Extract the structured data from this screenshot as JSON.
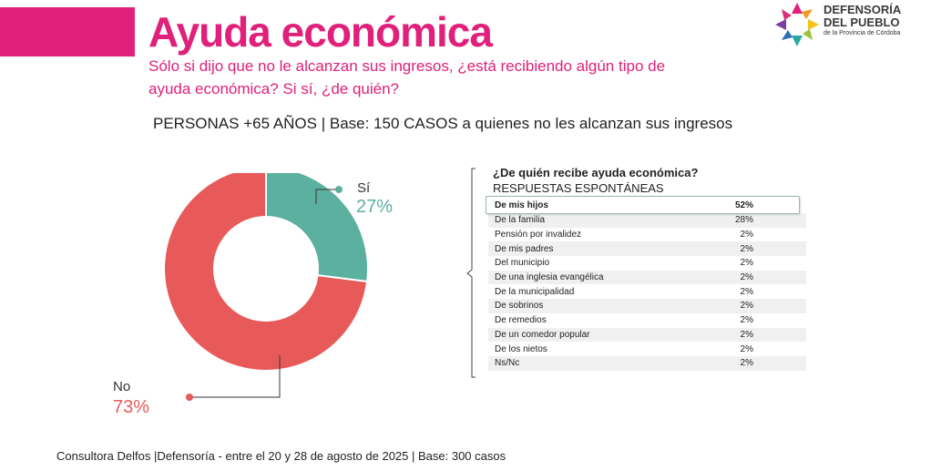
{
  "header": {
    "title": "Ayuda económica",
    "question": "Sólo si dijo que no le alcanzan sus ingresos, ¿está recibiendo algún tipo de ayuda económica? Si sí, ¿de quién?",
    "base": "PERSONAS +65 AÑOS | Base: 150 CASOS a quienes no les alcanzan sus ingresos"
  },
  "logo": {
    "line1": "DEFENSORÍA",
    "line2": "DEL PUEBLO",
    "line3": "de la Provincia de Córdoba"
  },
  "colors": {
    "brand": "#e0207a",
    "si": "#5bb0a0",
    "no": "#e85a5a"
  },
  "chart_data": [
    {
      "type": "pie",
      "categories": [
        "Sí",
        "No"
      ],
      "values": [
        27,
        73
      ],
      "value_labels": [
        "27%",
        "73%"
      ],
      "colors": [
        "#5bb0a0",
        "#e85a5a"
      ]
    },
    {
      "type": "table",
      "title": "¿De quién recibe ayuda económica?",
      "subtitle": "RESPUESTAS ESPONTÁNEAS",
      "rows": [
        {
          "label": "De mis hijos",
          "value": "52%"
        },
        {
          "label": "De la familia",
          "value": "28%"
        },
        {
          "label": "Pensión por invalidez",
          "value": "2%"
        },
        {
          "label": "De mis padres",
          "value": "2%"
        },
        {
          "label": "Del municipio",
          "value": "2%"
        },
        {
          "label": "De una inglesia evangélica",
          "value": "2%"
        },
        {
          "label": "De la municipalidad",
          "value": "2%"
        },
        {
          "label": "De sobrinos",
          "value": "2%"
        },
        {
          "label": "De remedios",
          "value": "2%"
        },
        {
          "label": "De un comedor popular",
          "value": "2%"
        },
        {
          "label": "De los nietos",
          "value": "2%"
        },
        {
          "label": "Ns/Nc",
          "value": "2%"
        }
      ]
    }
  ],
  "footer": "Consultora Delfos |Defensoría - entre el 20 y 28 de agosto de 2025 | Base: 300 casos"
}
